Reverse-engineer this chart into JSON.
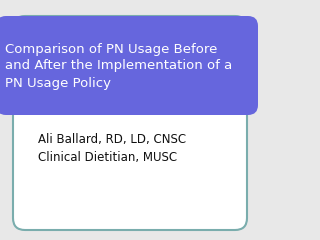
{
  "title_line1": "Comparison of PN Usage Before",
  "title_line2": "and After the Implementation of a",
  "title_line3": "PN Usage Policy",
  "author_line1": "Ali Ballard, RD, LD, CNSC",
  "author_line2": "Clinical Dietitian, MUSC",
  "bg_color": "#e8e8e8",
  "slide_bg": "#ffffff",
  "title_bg_color": "#6666dd",
  "title_text_color": "#ffffff",
  "author_text_color": "#111111",
  "border_color": "#7aadad",
  "title_fontsize": 9.5,
  "author_fontsize": 8.5
}
